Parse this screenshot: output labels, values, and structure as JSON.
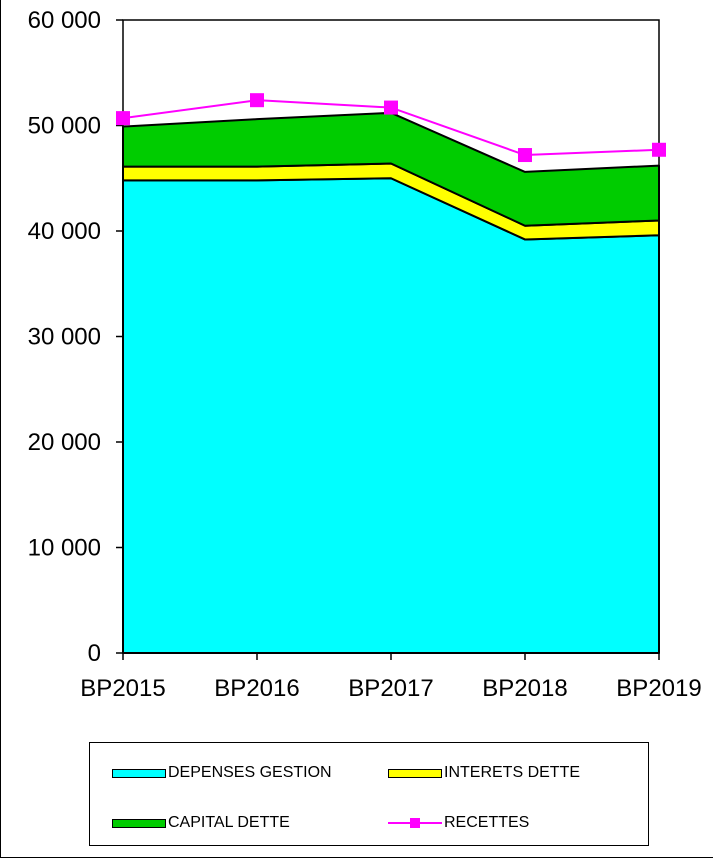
{
  "chart_data": {
    "type": "area",
    "title": "",
    "xlabel": "",
    "ylabel": "",
    "categories": [
      "BP2015",
      "BP2016",
      "BP2017",
      "BP2018",
      "BP2019"
    ],
    "ylim": [
      0,
      60000
    ],
    "yticks": [
      0,
      10000,
      20000,
      30000,
      40000,
      50000,
      60000
    ],
    "ytick_labels": [
      "0",
      "10 000",
      "20 000",
      "30 000",
      "40 000",
      "50 000",
      "60 000"
    ],
    "stacked": true,
    "series": [
      {
        "name": "DEPENSES GESTION",
        "kind": "area",
        "color": "#00FFFF",
        "values": [
          44800,
          44800,
          45000,
          39200,
          39600
        ]
      },
      {
        "name": "INTERETS DETTE",
        "kind": "area",
        "color": "#FFFF00",
        "values": [
          1300,
          1300,
          1400,
          1300,
          1400
        ]
      },
      {
        "name": "CAPITAL DETTE",
        "kind": "area",
        "color": "#00CC00",
        "values": [
          3800,
          4500,
          4800,
          5100,
          5200
        ]
      },
      {
        "name": "RECETTES",
        "kind": "line",
        "color": "#FF00FF",
        "marker": "square",
        "values": [
          50700,
          52400,
          51700,
          47200,
          47700
        ]
      }
    ],
    "grid": false,
    "legend_position": "bottom"
  },
  "legend": {
    "items": [
      {
        "label": "DEPENSES GESTION",
        "color": "#00FFFF",
        "kind": "area"
      },
      {
        "label": "INTERETS DETTE",
        "color": "#FFFF00",
        "kind": "area"
      },
      {
        "label": "CAPITAL DETTE",
        "color": "#00CC00",
        "kind": "area"
      },
      {
        "label": "RECETTES",
        "color": "#FF00FF",
        "kind": "line"
      }
    ]
  }
}
